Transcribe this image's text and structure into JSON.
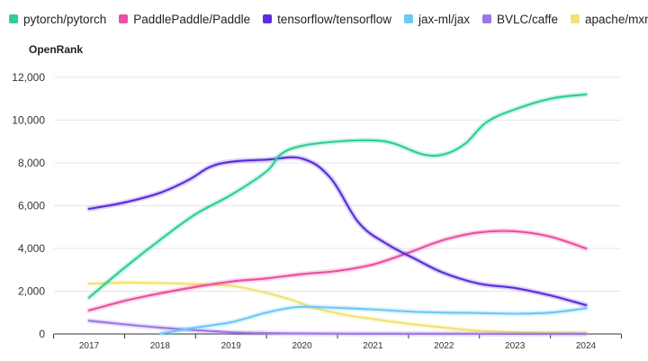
{
  "chart_data": {
    "type": "line",
    "title": "",
    "xlabel": "",
    "ylabel": "OpenRank",
    "categories": [
      "2017",
      "2018",
      "2019",
      "2020",
      "2021",
      "2022",
      "2023",
      "2024"
    ],
    "yticks": [
      "0",
      "2,000",
      "4,000",
      "6,000",
      "8,000",
      "10,000",
      "12,000"
    ],
    "ylim": [
      0,
      12500
    ],
    "grid": true,
    "legend_position": "top-left",
    "series": [
      {
        "name": "pytorch/pytorch",
        "color": "#2ecf97",
        "points": [
          [
            2017,
            1700
          ],
          [
            2017.5,
            3100
          ],
          [
            2018,
            4400
          ],
          [
            2018.5,
            5600
          ],
          [
            2019,
            6500
          ],
          [
            2019.5,
            7600
          ],
          [
            2019.7,
            8400
          ],
          [
            2020,
            8800
          ],
          [
            2020.5,
            9000
          ],
          [
            2021,
            9050
          ],
          [
            2021.3,
            8900
          ],
          [
            2021.7,
            8400
          ],
          [
            2022,
            8400
          ],
          [
            2022.3,
            8900
          ],
          [
            2022.6,
            9900
          ],
          [
            2023,
            10500
          ],
          [
            2023.5,
            11000
          ],
          [
            2024,
            11200
          ]
        ]
      },
      {
        "name": "PaddlePaddle/Paddle",
        "color": "#ec4fa6",
        "points": [
          [
            2017,
            1100
          ],
          [
            2017.5,
            1550
          ],
          [
            2018,
            1900
          ],
          [
            2018.5,
            2200
          ],
          [
            2019,
            2450
          ],
          [
            2019.5,
            2600
          ],
          [
            2020,
            2800
          ],
          [
            2020.5,
            2950
          ],
          [
            2021,
            3250
          ],
          [
            2021.5,
            3800
          ],
          [
            2022,
            4400
          ],
          [
            2022.5,
            4750
          ],
          [
            2023,
            4800
          ],
          [
            2023.5,
            4550
          ],
          [
            2024,
            4000
          ]
        ]
      },
      {
        "name": "tensorflow/tensorflow",
        "color": "#5b2ee0",
        "points": [
          [
            2017,
            5850
          ],
          [
            2017.5,
            6150
          ],
          [
            2018,
            6600
          ],
          [
            2018.4,
            7200
          ],
          [
            2018.7,
            7800
          ],
          [
            2019,
            8050
          ],
          [
            2019.5,
            8150
          ],
          [
            2020,
            8200
          ],
          [
            2020.4,
            7300
          ],
          [
            2020.8,
            5200
          ],
          [
            2021.2,
            4200
          ],
          [
            2021.6,
            3500
          ],
          [
            2022,
            2850
          ],
          [
            2022.5,
            2350
          ],
          [
            2023,
            2150
          ],
          [
            2023.5,
            1800
          ],
          [
            2024,
            1350
          ]
        ]
      },
      {
        "name": "jax-ml/jax",
        "color": "#6ec8f5",
        "points": [
          [
            2018,
            10
          ],
          [
            2018.5,
            300
          ],
          [
            2019,
            550
          ],
          [
            2019.5,
            1000
          ],
          [
            2019.9,
            1250
          ],
          [
            2020.3,
            1250
          ],
          [
            2021,
            1150
          ],
          [
            2021.5,
            1050
          ],
          [
            2022,
            1000
          ],
          [
            2022.5,
            980
          ],
          [
            2023,
            950
          ],
          [
            2023.5,
            1000
          ],
          [
            2024,
            1200
          ]
        ]
      },
      {
        "name": "BVLC/caffe",
        "color": "#9a78e8",
        "points": [
          [
            2017,
            620
          ],
          [
            2017.5,
            450
          ],
          [
            2018,
            300
          ],
          [
            2018.5,
            180
          ],
          [
            2019,
            80
          ],
          [
            2019.5,
            40
          ],
          [
            2020,
            20
          ],
          [
            2021,
            10
          ],
          [
            2022,
            10
          ],
          [
            2023,
            5
          ],
          [
            2024,
            5
          ]
        ]
      },
      {
        "name": "apache/mxnet",
        "color": "#f2e275",
        "points": [
          [
            2017,
            2350
          ],
          [
            2017.5,
            2400
          ],
          [
            2018,
            2380
          ],
          [
            2018.5,
            2330
          ],
          [
            2019,
            2250
          ],
          [
            2019.4,
            2000
          ],
          [
            2019.8,
            1650
          ],
          [
            2020.2,
            1200
          ],
          [
            2020.6,
            900
          ],
          [
            2021,
            700
          ],
          [
            2021.5,
            480
          ],
          [
            2022,
            300
          ],
          [
            2022.5,
            150
          ],
          [
            2023,
            80
          ],
          [
            2023.5,
            50
          ],
          [
            2024,
            40
          ]
        ]
      }
    ]
  }
}
